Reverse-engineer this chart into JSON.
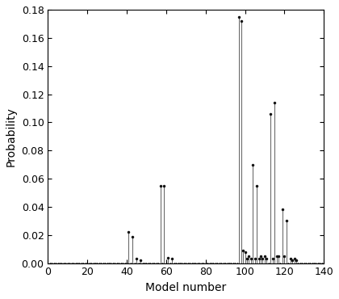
{
  "spikes": [
    [
      41,
      0.022
    ],
    [
      43,
      0.019
    ],
    [
      45,
      0.003
    ],
    [
      47,
      0.002
    ],
    [
      57,
      0.055
    ],
    [
      59,
      0.055
    ],
    [
      61,
      0.004
    ],
    [
      63,
      0.003
    ],
    [
      97,
      0.175
    ],
    [
      98,
      0.172
    ],
    [
      99,
      0.009
    ],
    [
      100,
      0.008
    ],
    [
      101,
      0.003
    ],
    [
      102,
      0.005
    ],
    [
      103,
      0.003
    ],
    [
      104,
      0.07
    ],
    [
      105,
      0.003
    ],
    [
      106,
      0.055
    ],
    [
      107,
      0.003
    ],
    [
      108,
      0.005
    ],
    [
      109,
      0.003
    ],
    [
      110,
      0.005
    ],
    [
      111,
      0.003
    ],
    [
      113,
      0.106
    ],
    [
      114,
      0.003
    ],
    [
      115,
      0.114
    ],
    [
      116,
      0.005
    ],
    [
      117,
      0.005
    ],
    [
      119,
      0.038
    ],
    [
      120,
      0.005
    ],
    [
      121,
      0.03
    ],
    [
      123,
      0.003
    ],
    [
      124,
      0.002
    ],
    [
      125,
      0.003
    ],
    [
      126,
      0.002
    ]
  ],
  "baseline_dots": true,
  "xlim": [
    0,
    140
  ],
  "ylim": [
    0,
    0.18
  ],
  "xticks": [
    0,
    20,
    40,
    60,
    80,
    100,
    120,
    140
  ],
  "yticks": [
    0.0,
    0.02,
    0.04,
    0.06,
    0.08,
    0.1,
    0.12,
    0.14,
    0.16,
    0.18
  ],
  "xlabel": "Model number",
  "ylabel": "Probability",
  "line_color": "#666666",
  "marker_color": "#111111",
  "bg_color": "#ffffff",
  "marker_size": 2.5,
  "line_width": 0.75,
  "baseline_dot_size": 1.5,
  "tick_labelsize": 9,
  "label_fontsize": 10
}
